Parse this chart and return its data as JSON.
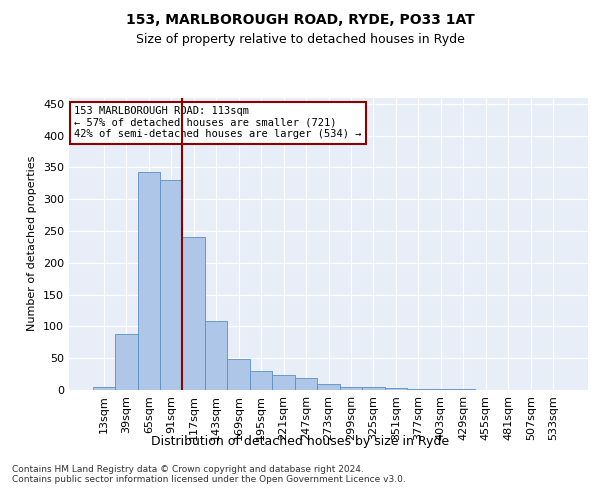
{
  "title1": "153, MARLBOROUGH ROAD, RYDE, PO33 1AT",
  "title2": "Size of property relative to detached houses in Ryde",
  "xlabel": "Distribution of detached houses by size in Ryde",
  "ylabel": "Number of detached properties",
  "bar_color": "#aec6e8",
  "bar_edge_color": "#5a8fc2",
  "categories": [
    "13sqm",
    "39sqm",
    "65sqm",
    "91sqm",
    "117sqm",
    "143sqm",
    "169sqm",
    "195sqm",
    "221sqm",
    "247sqm",
    "273sqm",
    "299sqm",
    "325sqm",
    "351sqm",
    "377sqm",
    "403sqm",
    "429sqm",
    "455sqm",
    "481sqm",
    "507sqm",
    "533sqm"
  ],
  "values": [
    5,
    88,
    343,
    330,
    240,
    108,
    49,
    30,
    24,
    19,
    9,
    5,
    4,
    3,
    1,
    1,
    1,
    0,
    0,
    0,
    0
  ],
  "ylim": [
    0,
    460
  ],
  "yticks": [
    0,
    50,
    100,
    150,
    200,
    250,
    300,
    350,
    400,
    450
  ],
  "vline_x": 4,
  "vline_color": "#8b0000",
  "annotation_text": "153 MARLBOROUGH ROAD: 113sqm\n← 57% of detached houses are smaller (721)\n42% of semi-detached houses are larger (534) →",
  "annotation_box_color": "white",
  "annotation_box_edge": "#8b0000",
  "footnote": "Contains HM Land Registry data © Crown copyright and database right 2024.\nContains public sector information licensed under the Open Government Licence v3.0.",
  "background_color": "#e8eef7",
  "grid_color": "white",
  "fig_bg": "#ffffff"
}
